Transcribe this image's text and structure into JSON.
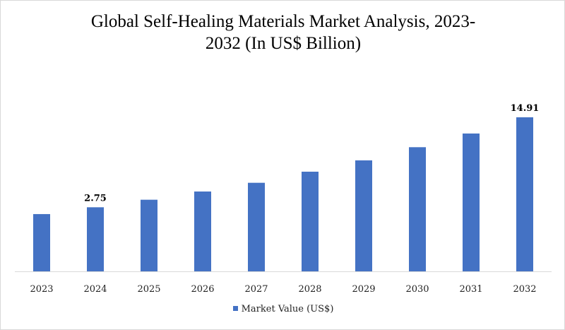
{
  "chart_data": {
    "type": "bar",
    "title": "Global Self-Healing Materials Market Analysis, 2023-2032 (In US$ Billion)",
    "title_lines": [
      "Global Self-Healing Materials Market Analysis, 2023-",
      "2032 (In US$ Billion)"
    ],
    "categories": [
      "2023",
      "2024",
      "2025",
      "2026",
      "2027",
      "2028",
      "2029",
      "2030",
      "2031",
      "2032"
    ],
    "series": [
      {
        "name": "Market Value (US$)",
        "values": [
          1.83,
          2.75,
          3.77,
          4.88,
          6.06,
          7.56,
          9.09,
          10.87,
          12.72,
          14.91
        ],
        "color": "#4472C4"
      }
    ],
    "data_labels": {
      "2024": "2.75",
      "2032": "14.91"
    },
    "xlabel": "",
    "ylabel": "",
    "ylim": [
      -5.91,
      14.91
    ],
    "y_axis_visible": false,
    "grid": false,
    "legend": "bottom"
  }
}
